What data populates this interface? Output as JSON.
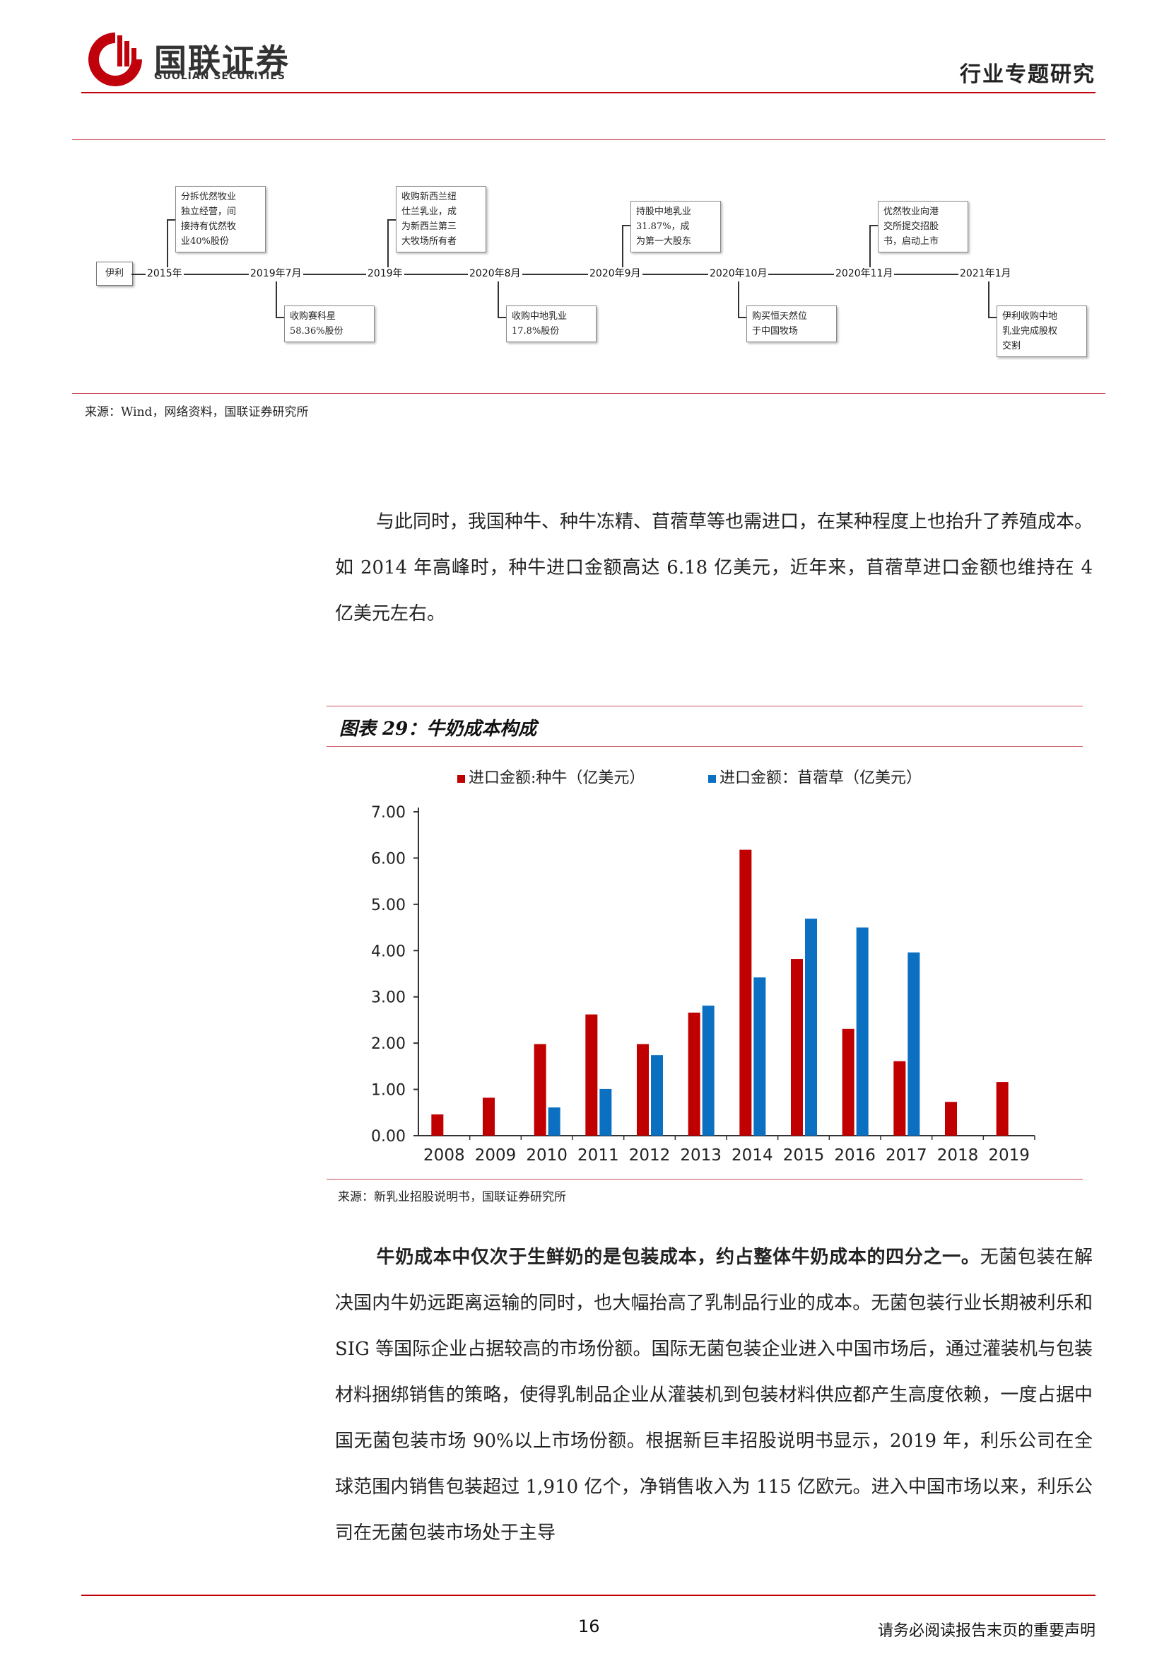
{
  "header": {
    "logo_cn": "国联证券",
    "logo_en": "GUOLIAN SECURITIES",
    "section_title": "行业专题研究",
    "brand_color": "#c0000a"
  },
  "timeline": {
    "start": "伊利",
    "dates": [
      "2015年",
      "2019年7月",
      "2019年",
      "2020年8月",
      "2020年9月",
      "2020年10月",
      "2020年11月",
      "2021年1月"
    ],
    "events_above": [
      "分拆优然牧业\n独立经营，间\n接持有优然牧\n业40%股份",
      "收购新西兰纽\n仕兰乳业，成\n为新西兰第三\n大牧场所有者",
      "持股中地乳业\n31.87%，成\n为第一大股东",
      "优然牧业向港\n交所提交招股\n书，启动上市"
    ],
    "events_below": [
      "收购赛科星\n58.36%股份",
      "收购中地乳业\n17.8%股份",
      "购买恒天然位\n于中国牧场",
      "伊利收购中地\n乳业完成股权\n交割"
    ],
    "source": "来源：Wind，网络资料，国联证券研究所"
  },
  "paragraph1": "与此同时，我国种牛、种牛冻精、苜蓿草等也需进口，在某种程度上也抬升了养殖成本。如 2014 年高峰时，种牛进口金额高达 6.18 亿美元，近年来，苜蓿草进口金额也维持在 4 亿美元左右。",
  "chart": {
    "title": "图表 29：牛奶成本构成",
    "source": "来源：新乳业招股说明书，国联证券研究所"
  },
  "chart_data": {
    "type": "bar",
    "title": "图表 29：牛奶成本构成",
    "categories": [
      "2008",
      "2009",
      "2010",
      "2011",
      "2012",
      "2013",
      "2014",
      "2015",
      "2016",
      "2017",
      "2018",
      "2019"
    ],
    "series": [
      {
        "name": "进口金额:种牛（亿美元）",
        "color": "#c00000",
        "values": [
          0.46,
          0.82,
          1.98,
          2.62,
          1.98,
          2.66,
          6.18,
          3.82,
          2.31,
          1.61,
          0.73,
          1.16
        ]
      },
      {
        "name": "进口金额：苜蓿草（亿美元）",
        "color": "#0b6fc2",
        "values": [
          null,
          null,
          0.61,
          1.01,
          1.74,
          2.81,
          3.42,
          4.69,
          4.5,
          3.96,
          null,
          null
        ]
      }
    ],
    "yticks": [
      "0.00",
      "1.00",
      "2.00",
      "3.00",
      "4.00",
      "5.00",
      "6.00",
      "7.00"
    ],
    "ylim": [
      0,
      7
    ],
    "legend": "top",
    "grid": false
  },
  "paragraph2": {
    "bold_lead": "牛奶成本中仅次于生鲜奶的是包装成本，约占整体牛奶成本的四分之一。",
    "text": "无菌包装在解决国内牛奶远距离运输的同时，也大幅抬高了乳制品行业的成本。无菌包装行业长期被利乐和 SIG 等国际企业占据较高的市场份额。国际无菌包装企业进入中国市场后，通过灌装机与包装材料捆绑销售的策略，使得乳制品企业从灌装机到包装材料供应都产生高度依赖，一度占据中国无菌包装市场 90%以上市场份额。根据新巨丰招股说明书显示，2019 年，利乐公司在全球范围内销售包装超过 1,910 亿个，净销售收入为 115 亿欧元。进入中国市场以来，利乐公司在无菌包装市场处于主导"
  },
  "footer": {
    "page_number": "16",
    "disclaimer": "请务必阅读报告末页的重要声明"
  }
}
